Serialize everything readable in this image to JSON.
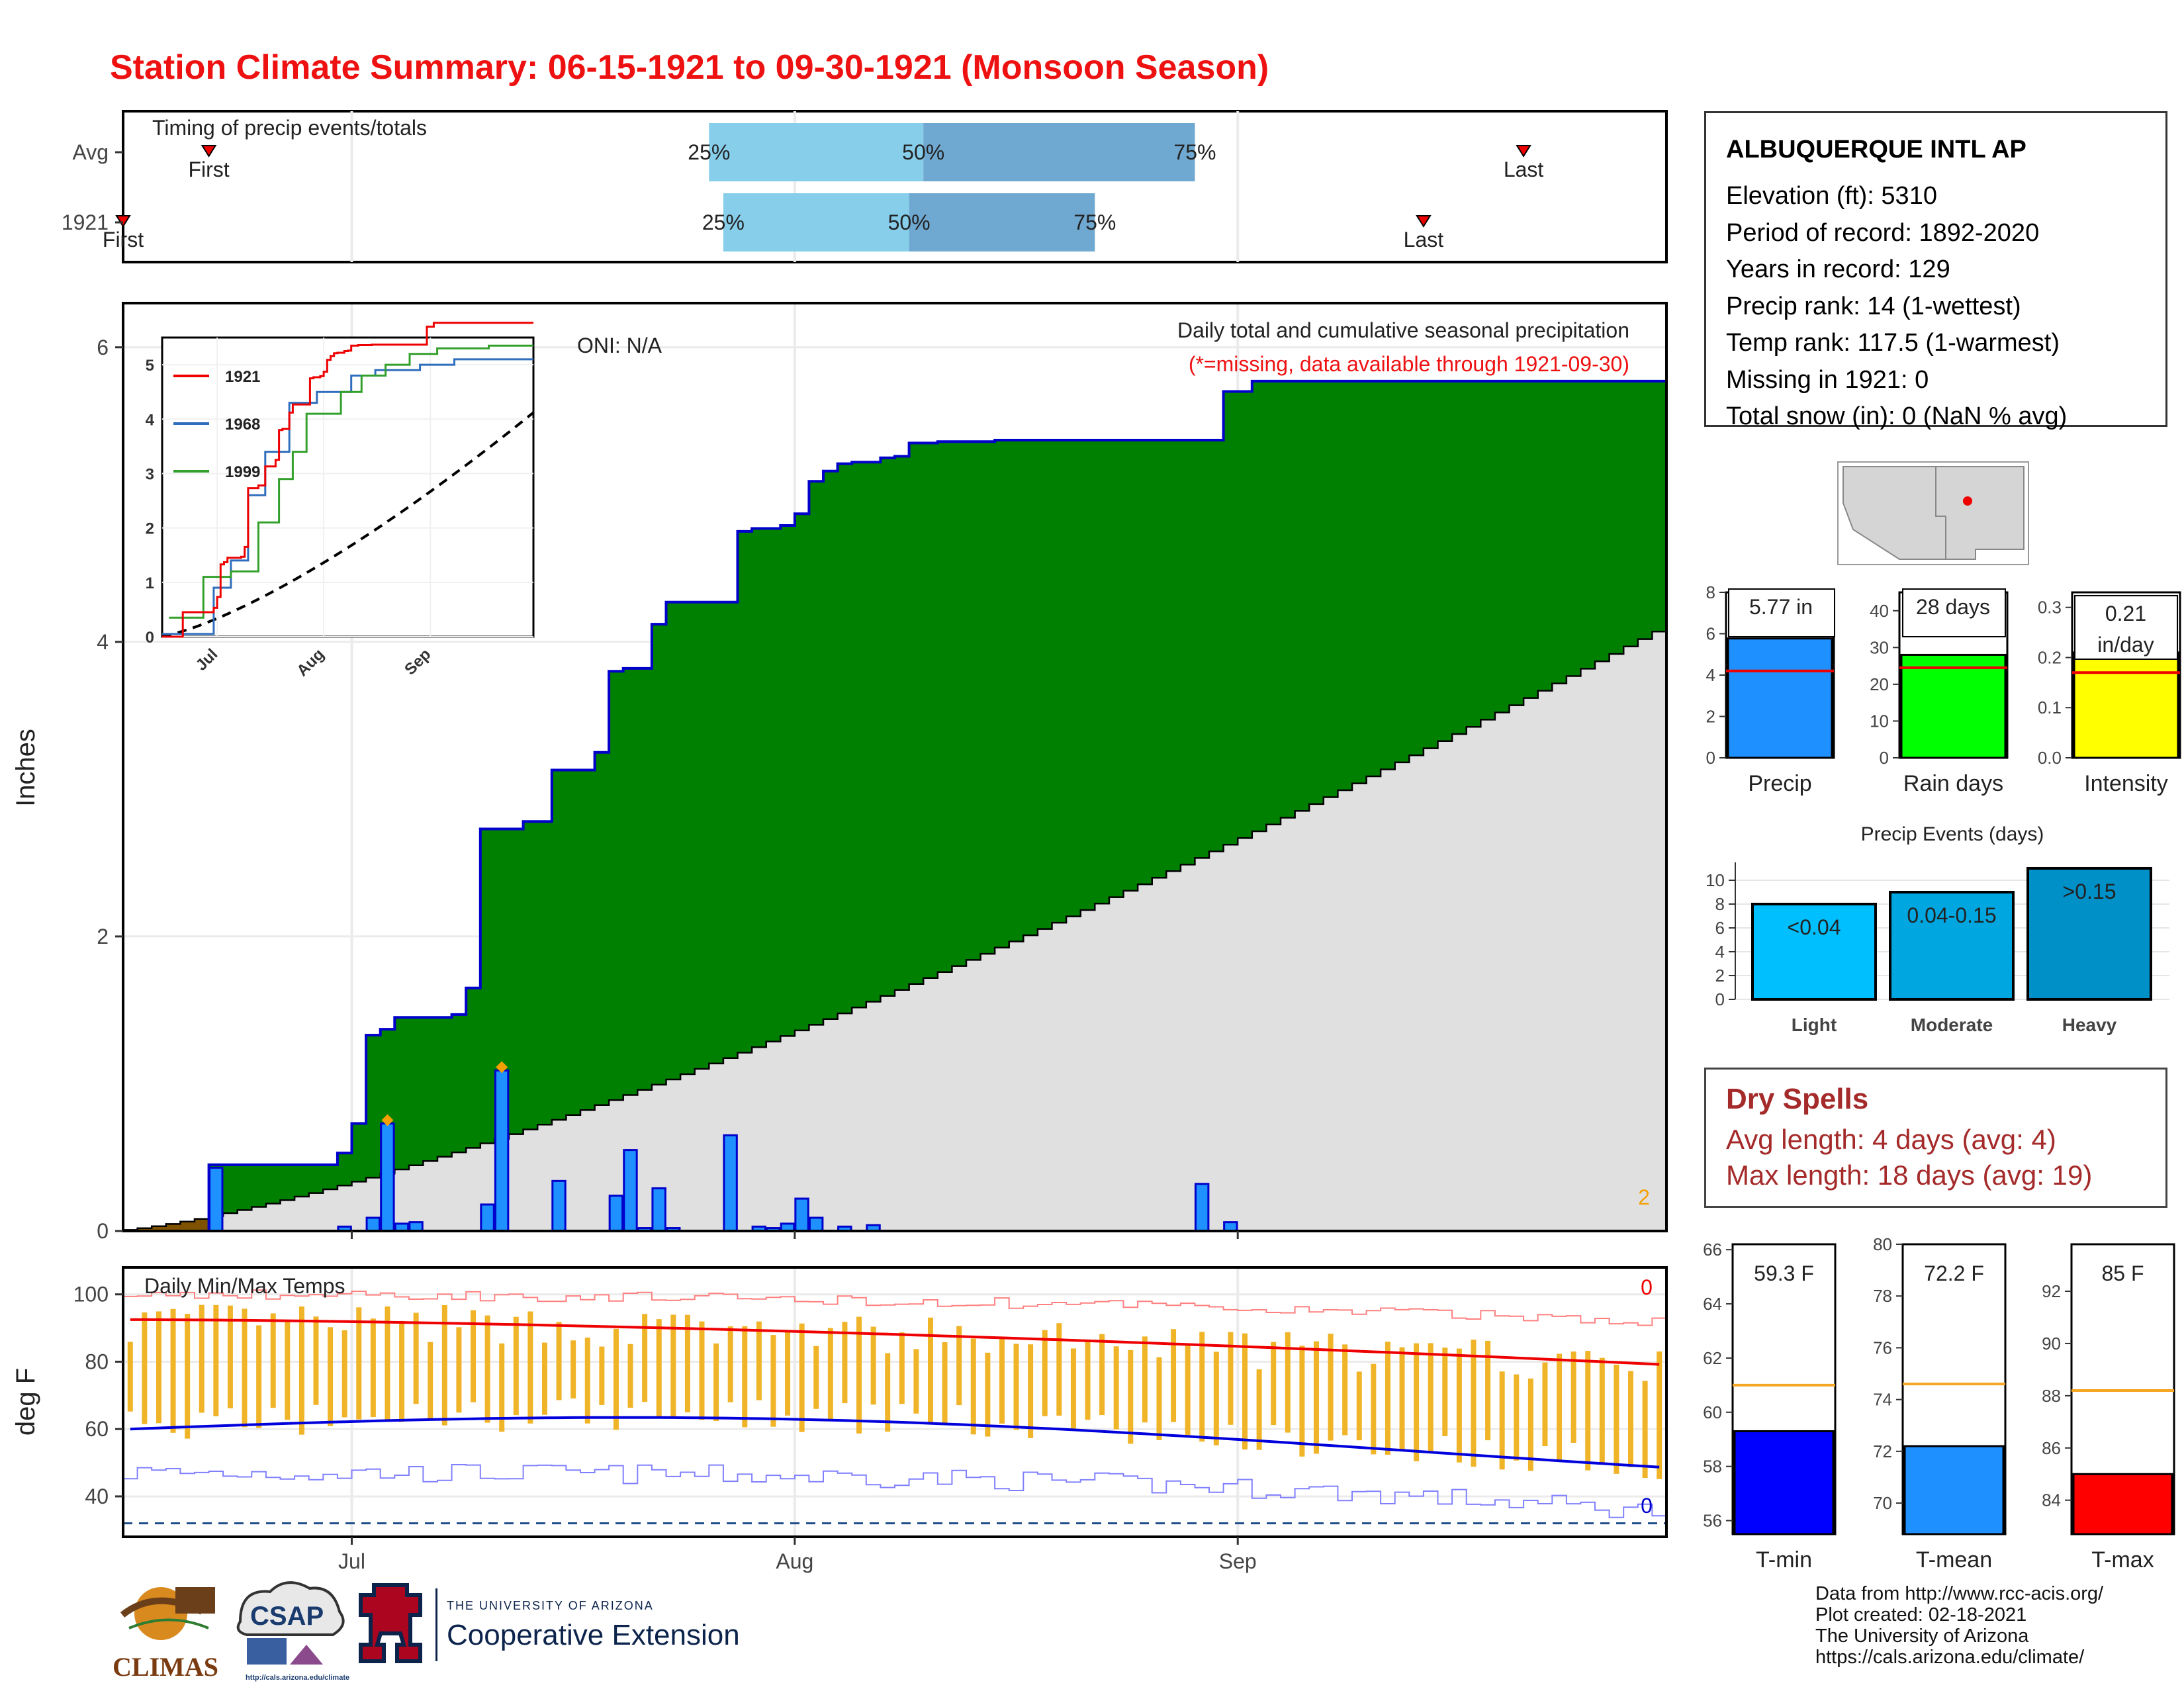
{
  "title": "Station Climate Summary: 06-15-1921 to 09-30-1921 (Monsoon Season)",
  "station": {
    "name": "ALBUQUERQUE INTL AP",
    "lines": [
      "Elevation (ft): 5310",
      "Period of record: 1892-2020",
      "Years in record: 129",
      "Precip rank: 14 (1-wettest)",
      "Temp rank: 117.5 (1-warmest)",
      "Missing in 1921: 0",
      "Total snow (in): 0 (NaN % avg)"
    ]
  },
  "dry_spells": {
    "title": "Dry Spells",
    "avg_line": "Avg length: 4 days (avg: 4)",
    "max_line": "Max length: 18 days (avg: 19)"
  },
  "credits": [
    "Data from http://www.rcc-acis.org/",
    "Plot created: 02-18-2021",
    "The University of Arizona",
    "https://cals.arizona.edu/climate/"
  ],
  "logos": {
    "climas": "CLIMAS",
    "csap": "CSAP",
    "csap_url": "http://cals.arizona.edu/climate",
    "ua_small": "THE UNIVERSITY OF ARIZONA",
    "ua_big": "Cooperative Extension"
  },
  "colors": {
    "title": "#ee1111",
    "precip_bar": "#1e90ff",
    "cum_above": "#008000",
    "cum_below": "#7f5200",
    "normal_fill": "#e0e0e0",
    "temp_bar": "#f0b429",
    "tmax_line": "#ee0000",
    "tmin_line": "#0000dd",
    "rain_days": "#00ff00",
    "intensity": "#ffff00",
    "event_light": "#00bfff",
    "event_moderate": "#00a6e0",
    "event_heavy": "#0090c8"
  },
  "chart_data": [
    {
      "id": "timing",
      "type": "timeline",
      "title": "Timing of precip events/totals",
      "rows": [
        {
          "label": "Avg",
          "first": "06-21",
          "last": "09-21",
          "q25": "07-26",
          "q50": "08-10",
          "q75": "08-29",
          "first_label": "First",
          "last_label": "Last"
        },
        {
          "label": "1921",
          "first": "06-15",
          "last": "09-14",
          "q25": "07-27",
          "q50": "08-09",
          "q75": "08-22",
          "first_label": "First",
          "last_label": "Last"
        }
      ],
      "quantile_labels": [
        "25%",
        "50%",
        "75%"
      ]
    },
    {
      "id": "precip",
      "type": "area",
      "title": "Daily total and cumulative seasonal precipitation",
      "subtitle": "(*=missing, data available through 1921-09-30)",
      "annotation": "ONI: N/A",
      "corner_label": "2",
      "ylabel": "Inches",
      "ylim": [
        0,
        6.3
      ],
      "yticks": [
        0,
        2,
        4,
        6
      ],
      "xticks": [
        "Jul",
        "Aug",
        "Sep"
      ],
      "days": 108,
      "cumulative_1921": [
        [
          0,
          0
        ],
        [
          6,
          0.45
        ],
        [
          12,
          0.45
        ],
        [
          15,
          0.53
        ],
        [
          16,
          0.73
        ],
        [
          17,
          1.33
        ],
        [
          18,
          1.37
        ],
        [
          19,
          1.45
        ],
        [
          23,
          1.47
        ],
        [
          24,
          1.65
        ],
        [
          25,
          2.73
        ],
        [
          28,
          2.78
        ],
        [
          30,
          3.13
        ],
        [
          33,
          3.25
        ],
        [
          34,
          3.8
        ],
        [
          35,
          3.82
        ],
        [
          37,
          4.12
        ],
        [
          38,
          4.27
        ],
        [
          43,
          4.75
        ],
        [
          44,
          4.77
        ],
        [
          45,
          4.77
        ],
        [
          46,
          4.79
        ],
        [
          47,
          4.87
        ],
        [
          48,
          5.09
        ],
        [
          49,
          5.16
        ],
        [
          50,
          5.21
        ],
        [
          51,
          5.22
        ],
        [
          53,
          5.25
        ],
        [
          54,
          5.26
        ],
        [
          55,
          5.35
        ],
        [
          56,
          5.35
        ],
        [
          57,
          5.36
        ],
        [
          61,
          5.37
        ],
        [
          75,
          5.37
        ],
        [
          77,
          5.7
        ],
        [
          79,
          5.77
        ],
        [
          107,
          5.77
        ]
      ],
      "daily_1921": [
        [
          6,
          0.43
        ],
        [
          15,
          0.03
        ],
        [
          17,
          0.09
        ],
        [
          18,
          0.73
        ],
        [
          19,
          0.05
        ],
        [
          20,
          0.06
        ],
        [
          25,
          0.18
        ],
        [
          26,
          1.09
        ],
        [
          30,
          0.34
        ],
        [
          34,
          0.24
        ],
        [
          35,
          0.55
        ],
        [
          36,
          0.02
        ],
        [
          37,
          0.29
        ],
        [
          38,
          0.02
        ],
        [
          42,
          0.65
        ],
        [
          44,
          0.03
        ],
        [
          45,
          0.02
        ],
        [
          46,
          0.05
        ],
        [
          47,
          0.22
        ],
        [
          48,
          0.09
        ],
        [
          50,
          0.03
        ],
        [
          52,
          0.04
        ],
        [
          75,
          0.32
        ],
        [
          77,
          0.06
        ]
      ],
      "normal_cumulative_end": 4.07,
      "markers": [
        [
          18,
          0.73
        ],
        [
          26,
          1.09
        ]
      ]
    },
    {
      "id": "inset",
      "type": "line",
      "series": [
        {
          "name": "1921",
          "color": "#ee0000"
        },
        {
          "name": "1968",
          "color": "#2f6ebd"
        },
        {
          "name": "1999",
          "color": "#33a02c"
        }
      ],
      "ylim": [
        0,
        5.5
      ],
      "yticks": [
        0,
        1,
        2,
        3,
        4,
        5
      ],
      "xticks": [
        "Jul",
        "Aug",
        "Sep"
      ]
    },
    {
      "id": "temps",
      "type": "bar",
      "title": "Daily Min/Max Temps",
      "ylabel": "deg F",
      "ylim": [
        28,
        108
      ],
      "yticks": [
        40,
        60,
        80,
        100
      ],
      "xticks": [
        "Jul",
        "Aug",
        "Sep"
      ],
      "corner_top": "0",
      "corner_bottom": "0",
      "freeze_line": 32
    },
    {
      "id": "precip-summary",
      "type": "bar",
      "panels": [
        {
          "name": "Precip",
          "value": 5.77,
          "label": "5.77 in",
          "avg": 4.2,
          "ylim": [
            0,
            8
          ],
          "yticks": [
            0,
            2,
            4,
            6,
            8
          ]
        },
        {
          "name": "Rain days",
          "value": 28,
          "label": "28 days",
          "avg": 24.5,
          "ylim": [
            0,
            45
          ],
          "yticks": [
            0,
            10,
            20,
            30,
            40
          ]
        },
        {
          "name": "Intensity",
          "value": 0.21,
          "label": "0.21 in/day",
          "avg": 0.17,
          "ylim": [
            0,
            0.33
          ],
          "yticks": [
            0.0,
            0.1,
            0.2,
            0.3
          ]
        }
      ]
    },
    {
      "id": "events",
      "type": "bar",
      "title": "Precip Events (days)",
      "categories": [
        "Light",
        "Moderate",
        "Heavy"
      ],
      "values": [
        8,
        9,
        11
      ],
      "labels": [
        "<0.04",
        "0.04-0.15",
        ">0.15"
      ],
      "ylim": [
        0,
        11.5
      ],
      "yticks": [
        0,
        2,
        4,
        6,
        8,
        10
      ]
    },
    {
      "id": "temp-summary",
      "type": "bar",
      "panels": [
        {
          "name": "T-min",
          "value": 59.3,
          "label": "59.3 F",
          "avg": 61.0,
          "ylim": [
            55.5,
            66.2
          ],
          "yticks": [
            56,
            58,
            60,
            62,
            64,
            66
          ]
        },
        {
          "name": "T-mean",
          "value": 72.2,
          "label": "72.2 F",
          "avg": 74.6,
          "ylim": [
            68.8,
            80
          ],
          "yticks": [
            70,
            72,
            74,
            76,
            78,
            80
          ]
        },
        {
          "name": "T-max",
          "value": 85,
          "label": "85 F",
          "avg": 88.2,
          "ylim": [
            82.7,
            93.8
          ],
          "yticks": [
            84,
            86,
            88,
            90,
            92
          ]
        }
      ]
    }
  ]
}
